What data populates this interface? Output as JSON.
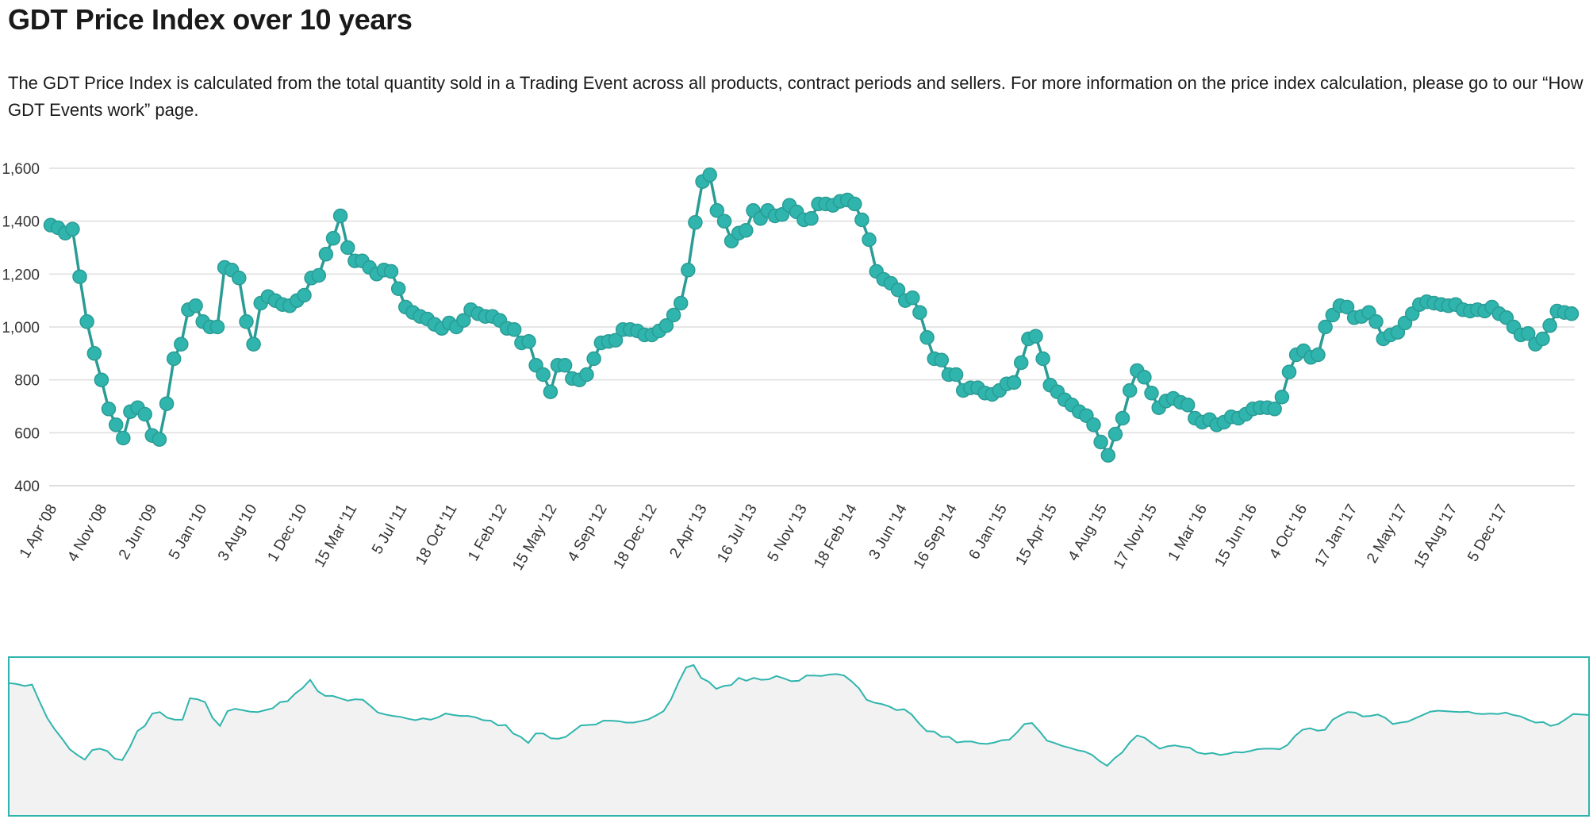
{
  "page": {
    "title": "GDT Price Index over 10 years",
    "description": "The GDT Price Index is calculated from the total quantity sold in a Trading Event across all products, contract periods and sellers. For more information on the price index calculation, please go to our “How GDT Events work” page."
  },
  "colors": {
    "series": "#2fb5ad",
    "series_stroke": "#2a9c95",
    "grid": "#dddddd",
    "navigator_fill": "#f2f2f2",
    "navigator_border": "#2fb5ad"
  },
  "chart_data": {
    "type": "line",
    "title": "",
    "xlabel": "",
    "ylabel": "",
    "ylim": [
      400,
      1600
    ],
    "yticks": [
      "400",
      "600",
      "800",
      "1,000",
      "1,200",
      "1,400",
      "1,600"
    ],
    "ytick_values": [
      400,
      600,
      800,
      1000,
      1200,
      1400,
      1600
    ],
    "xticks": [
      "1 Apr '08",
      "4 Nov '08",
      "2 Jun '09",
      "5 Jan '10",
      "3 Aug '10",
      "1 Dec '10",
      "15 Mar '11",
      "5 Jul '11",
      "18 Oct '11",
      "1 Feb '12",
      "15 May '12",
      "4 Sep '12",
      "18 Dec '12",
      "2 Apr '13",
      "16 Jul '13",
      "5 Nov '13",
      "18 Feb '14",
      "3 Jun '14",
      "16 Sep '14",
      "6 Jan '15",
      "15 Apr '15",
      "4 Aug '15",
      "17 Nov '15",
      "1 Mar '16",
      "15 Jun '16",
      "4 Oct '16",
      "17 Jan '17",
      "2 May '17",
      "15 Aug '17",
      "5 Dec '17"
    ],
    "grid": true,
    "legend": "none",
    "navigator": true,
    "series": [
      {
        "values": [
          1385,
          1375,
          1355,
          1370,
          1190,
          1020,
          900,
          800,
          690,
          630,
          580,
          680,
          695,
          670,
          590,
          575,
          710,
          880,
          935,
          1065,
          1080,
          1020,
          1000,
          1000,
          1225,
          1215,
          1185,
          1020,
          935,
          1090,
          1115,
          1100,
          1085,
          1080,
          1100,
          1120,
          1185,
          1195,
          1275,
          1335,
          1420,
          1300,
          1250,
          1250,
          1225,
          1200,
          1215,
          1210,
          1145,
          1075,
          1055,
          1040,
          1030,
          1010,
          995,
          1015,
          1000,
          1025,
          1065,
          1050,
          1040,
          1040,
          1025,
          995,
          990,
          940,
          945,
          855,
          820,
          755,
          855,
          855,
          805,
          800,
          820,
          880,
          940,
          945,
          950,
          990,
          990,
          985,
          970,
          970,
          985,
          1005,
          1045,
          1090,
          1215,
          1395,
          1550,
          1575,
          1440,
          1400,
          1325,
          1355,
          1365,
          1440,
          1410,
          1440,
          1420,
          1425,
          1460,
          1435,
          1405,
          1410,
          1465,
          1465,
          1460,
          1475,
          1480,
          1465,
          1405,
          1330,
          1210,
          1180,
          1165,
          1140,
          1100,
          1110,
          1055,
          960,
          880,
          875,
          820,
          820,
          760,
          770,
          770,
          750,
          745,
          760,
          785,
          790,
          865,
          955,
          965,
          880,
          780,
          755,
          725,
          705,
          680,
          665,
          630,
          565,
          515,
          595,
          655,
          760,
          835,
          810,
          750,
          695,
          720,
          730,
          715,
          705,
          655,
          640,
          650,
          630,
          640,
          660,
          655,
          670,
          690,
          695,
          695,
          690,
          735,
          830,
          895,
          910,
          885,
          895,
          1000,
          1045,
          1080,
          1075,
          1035,
          1040,
          1055,
          1020,
          955,
          970,
          980,
          1015,
          1050,
          1085,
          1095,
          1090,
          1085,
          1080,
          1085,
          1065,
          1060,
          1065,
          1060,
          1075,
          1050,
          1035,
          1000,
          970,
          975,
          935,
          955,
          1005,
          1060,
          1055,
          1050
        ]
      }
    ]
  }
}
